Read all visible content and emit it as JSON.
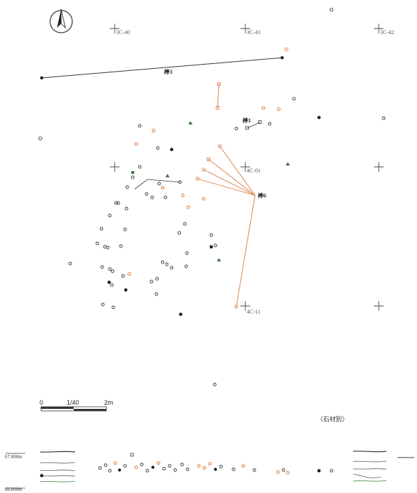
{
  "map": {
    "grid_labels": [
      "3C-40",
      "3C-41",
      "3C-42",
      "4C-01",
      "4C-11"
    ],
    "refit_labels": [
      "棒3",
      "棒1",
      "棒6"
    ],
    "scale": {
      "start": "0",
      "ratio": "1/40",
      "end": "2m"
    },
    "caption": "〈石材別〉",
    "section_labels": {
      "top": "67.000m",
      "bottom": "66.000m"
    },
    "colors": {
      "orange": "#d9773c",
      "black": "#222222",
      "green": "#3c7a3c",
      "line": "#333333"
    }
  }
}
